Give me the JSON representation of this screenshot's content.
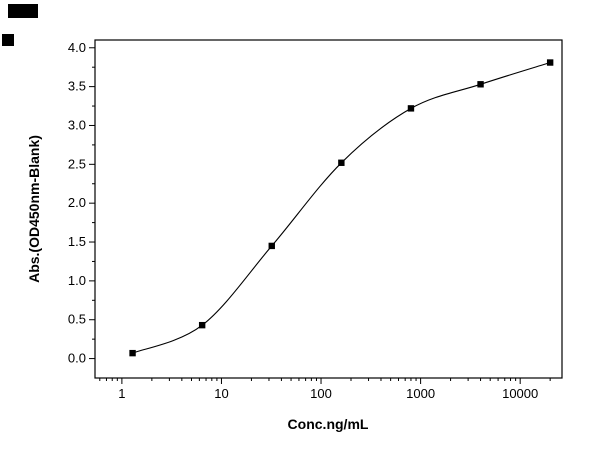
{
  "chart_data": {
    "type": "scatter",
    "title": "",
    "xlabel": "Conc.ng/mL",
    "ylabel": "Abs.(OD450nm-Blank)",
    "x_scale": "log",
    "x": [
      1.28,
      6.4,
      32,
      160,
      800,
      4000,
      20000
    ],
    "y": [
      0.07,
      0.43,
      1.45,
      2.52,
      3.22,
      3.53,
      3.81
    ],
    "fit": "4-parameter logistic sigmoidal curve through points",
    "xlim_log10": [
      -0.27,
      4.42
    ],
    "ylim": [
      -0.25,
      4.1
    ],
    "x_major_ticks": [
      1,
      10,
      100,
      1000,
      10000
    ],
    "y_major_ticks": [
      0.0,
      0.5,
      1.0,
      1.5,
      2.0,
      2.5,
      3.0,
      3.5,
      4.0
    ],
    "marker": "filled-square",
    "legend": "none",
    "grid": "off",
    "colors": {
      "line": "#000000",
      "marker": "#000000",
      "axis": "#000000",
      "background": "#ffffff"
    }
  }
}
